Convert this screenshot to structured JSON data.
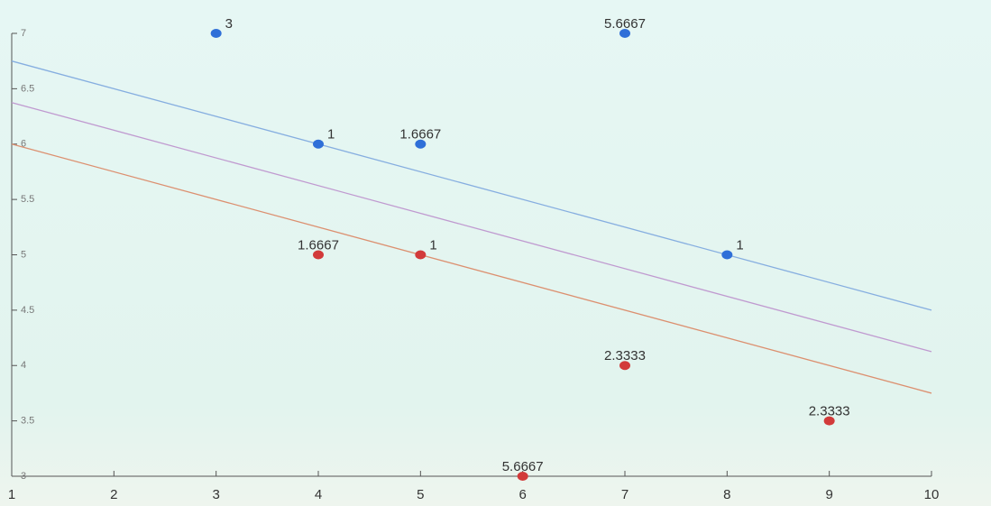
{
  "chart_data": {
    "type": "scatter",
    "xlim": [
      1,
      10
    ],
    "xticks": [
      1,
      2,
      3,
      4,
      5,
      6,
      7,
      8,
      9,
      10
    ],
    "ylim": [
      3,
      7
    ],
    "yticks": [
      3,
      3.5,
      4,
      4.5,
      5,
      5.5,
      6,
      6.5,
      7
    ],
    "series": [
      {
        "color": "#2f6fd8",
        "x": [
          3,
          7,
          4,
          5,
          8
        ],
        "values": [
          7,
          7,
          6,
          6,
          5
        ],
        "point_labels": [
          3,
          5.6667,
          1,
          1.6667,
          1
        ]
      },
      {
        "color": "#d23a3a",
        "x": [
          4,
          5,
          7,
          9,
          6
        ],
        "values": [
          5,
          5,
          4,
          3.5,
          3
        ],
        "point_labels": [
          1.6667,
          1,
          2.3333,
          2.3333,
          5.6667
        ]
      }
    ],
    "lines": [
      {
        "color": "#86aee0",
        "x": [
          1,
          10
        ],
        "values": [
          6.75,
          4.5
        ]
      },
      {
        "color": "#c09ad0",
        "x": [
          1,
          10
        ],
        "values": [
          6.375,
          4.125
        ]
      },
      {
        "color": "#dc9070",
        "x": [
          1,
          10
        ],
        "values": [
          6,
          3.75
        ]
      }
    ]
  }
}
